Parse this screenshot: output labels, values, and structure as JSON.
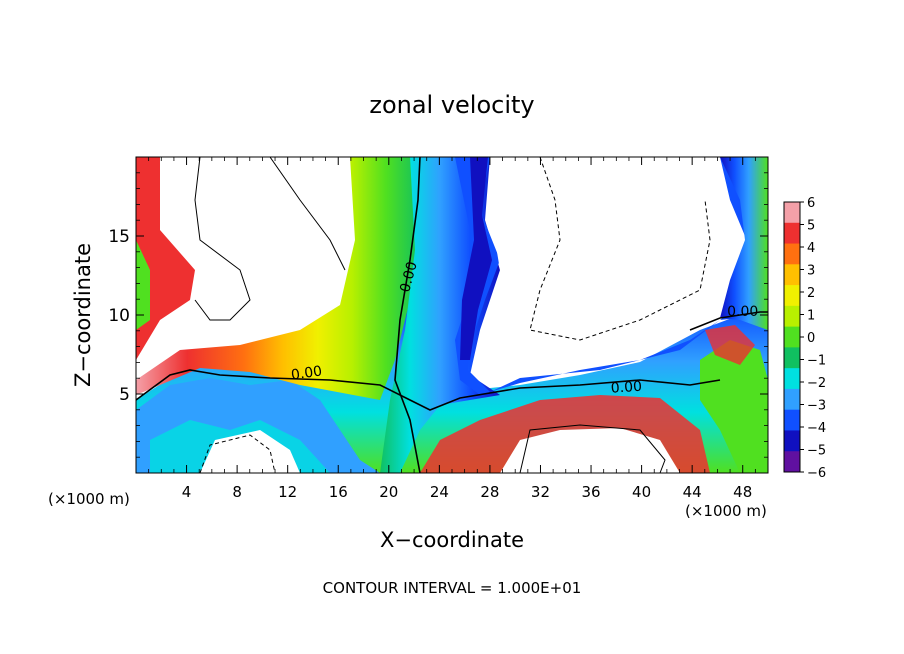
{
  "chart_data": {
    "type": "heatmap",
    "title": "zonal velocity",
    "xlabel": "X−coordinate",
    "ylabel": "Z−coordinate",
    "x_unit_note_left": "(×1000 m)",
    "x_unit_note_right": "(×1000 m)",
    "footer": "CONTOUR INTERVAL = 1.000E+01",
    "xlim": [
      0,
      50
    ],
    "ylim": [
      0,
      20
    ],
    "x_ticks": [
      4,
      8,
      12,
      16,
      20,
      24,
      28,
      32,
      36,
      40,
      44,
      48
    ],
    "y_ticks": [
      5,
      10,
      15
    ],
    "colorbar": {
      "min": -6,
      "max": 6,
      "tick_labels": [
        "6",
        "5",
        "4",
        "3",
        "2",
        "1",
        "0",
        "−1",
        "−2",
        "−3",
        "−4",
        "−5",
        "−6"
      ],
      "colors": [
        "#f4a0a8",
        "#ee3030",
        "#ff7010",
        "#ffc000",
        "#f0f000",
        "#b8f000",
        "#50e020",
        "#10c060",
        "#00e0e0",
        "#30a0ff",
        "#1050ff",
        "#1010c0",
        "#6010a0"
      ]
    },
    "contour_labels": [
      {
        "text": "0.00",
        "x": 13.5,
        "y": 6.3,
        "angle": -8
      },
      {
        "text": "0.00",
        "x": 21.6,
        "y": 12.4,
        "angle": -75
      },
      {
        "text": "0.00",
        "x": 38.8,
        "y": 5.4,
        "angle": -4
      },
      {
        "text": "0.00",
        "x": 48.0,
        "y": 10.2,
        "angle": 0
      }
    ]
  }
}
